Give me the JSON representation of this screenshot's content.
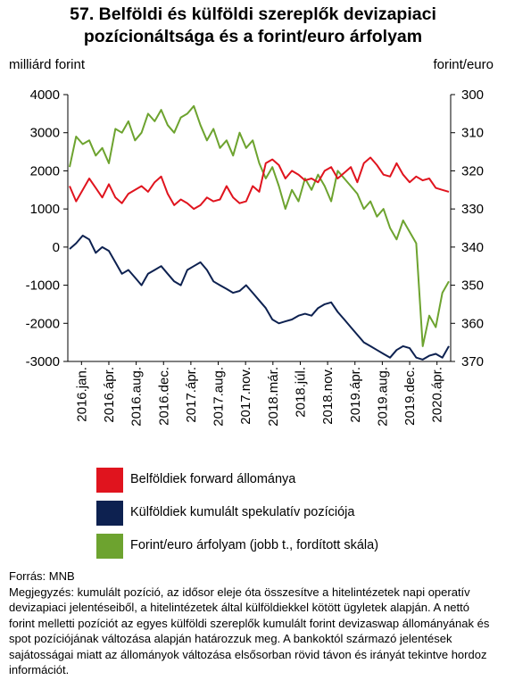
{
  "title_line1": "57. Belföldi és külföldi szereplők devizapiaci",
  "title_line2": "pozícionáltsága és a forint/euro árfolyam",
  "chart_data": {
    "type": "line",
    "left_axis_label": "milliárd forint",
    "right_axis_label": "forint/euro",
    "left_ylim": [
      -3000,
      4000
    ],
    "left_ticks": [
      "4000",
      "3000",
      "2000",
      "1000",
      "0",
      "-1000",
      "-2000",
      "-3000"
    ],
    "right_ylim": [
      300,
      370
    ],
    "right_inverted": true,
    "right_ticks": [
      "300",
      "310",
      "320",
      "330",
      "340",
      "350",
      "360",
      "370"
    ],
    "x_tick_labels": [
      "2016.jan.",
      "2016.ápr.",
      "2016.aug.",
      "2016.dec.",
      "2017.ápr.",
      "2017.aug.",
      "2017.nov.",
      "2018.már.",
      "2018.júl.",
      "2018.nov.",
      "2019.ápr.",
      "2019.aug.",
      "2019.dec.",
      "2020.ápr."
    ],
    "grid": false,
    "legend_position": "bottom",
    "series": [
      {
        "name": "Belföldiek forward állománya",
        "color": "#e0141e",
        "axis": "left",
        "values": [
          1600,
          1200,
          1500,
          1800,
          1550,
          1300,
          1650,
          1300,
          1150,
          1400,
          1500,
          1600,
          1450,
          1700,
          1850,
          1400,
          1100,
          1250,
          1150,
          1000,
          1100,
          1300,
          1200,
          1250,
          1600,
          1300,
          1150,
          1200,
          1600,
          1450,
          2200,
          2300,
          2150,
          1800,
          2000,
          1900,
          1750,
          1800,
          1700,
          2000,
          2100,
          1800,
          1950,
          2100,
          1700,
          2200,
          2350,
          2150,
          1900,
          1850,
          2200,
          1900,
          1700,
          1850,
          1750,
          1800,
          1550,
          1500,
          1450
        ]
      },
      {
        "name": "Külföldiek kumulált spekulatív pozíciója",
        "color": "#0d2150",
        "axis": "left",
        "values": [
          -50,
          100,
          300,
          200,
          -150,
          0,
          -100,
          -400,
          -700,
          -600,
          -800,
          -1000,
          -700,
          -600,
          -500,
          -700,
          -900,
          -1000,
          -600,
          -500,
          -400,
          -600,
          -900,
          -1000,
          -1100,
          -1200,
          -1150,
          -1000,
          -1200,
          -1400,
          -1600,
          -1900,
          -2000,
          -1950,
          -1900,
          -1800,
          -1750,
          -1800,
          -1600,
          -1500,
          -1450,
          -1700,
          -1900,
          -2100,
          -2300,
          -2500,
          -2600,
          -2700,
          -2800,
          -2900,
          -2700,
          -2600,
          -2650,
          -2900,
          -2950,
          -2850,
          -2800,
          -2900,
          -2600
        ]
      },
      {
        "name": "Forint/euro árfolyam (jobb t., fordított skála)",
        "color": "#6da32f",
        "axis": "right",
        "values": [
          319,
          311,
          313,
          312,
          316,
          314,
          318,
          309,
          310,
          307,
          312,
          310,
          305,
          307,
          304,
          308,
          310,
          306,
          305,
          303,
          308,
          312,
          309,
          314,
          312,
          316,
          310,
          314,
          312,
          318,
          322,
          319,
          324,
          330,
          325,
          328,
          322,
          325,
          321,
          324,
          328,
          320,
          322,
          324,
          326,
          330,
          328,
          332,
          330,
          335,
          338,
          333,
          336,
          339,
          366,
          358,
          361,
          352,
          349
        ]
      }
    ]
  },
  "notes": {
    "source": "Forrás: MNB",
    "note": "Megjegyzés: kumulált pozíció, az idősor eleje óta összesítve a hitelintézetek napi operatív devizapiaci jelentéseiből, a hitelintézetek által külföldiekkel kötött ügyletek alapján. A nettó forint melletti pozíciót az egyes külföldi szereplők kumulált forint devizaswap állományának és spot pozíciójának változása alapján határozzuk meg. A bankoktól származó jelentések sajátosságai miatt az állományok változása elsősorban rövid távon és irányát tekintve hordoz információt."
  }
}
